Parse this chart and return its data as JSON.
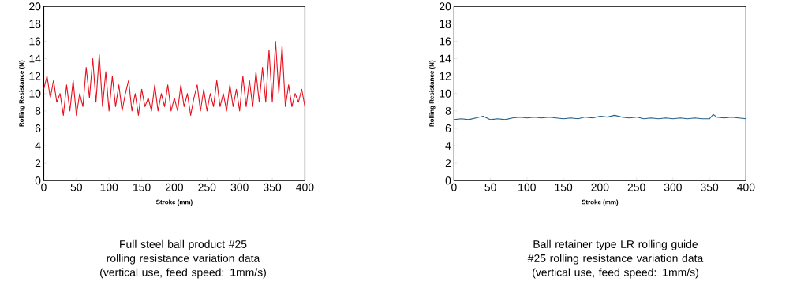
{
  "chart_data": [
    {
      "type": "line",
      "xlabel": "Stroke (mm)",
      "ylabel": "Rolling Resistance (N)",
      "annotations": [
        "Full steel ball product #25 rolling resistance variation data (vertical use, feed speed: 1mm/s)"
      ],
      "xlim": [
        0,
        400
      ],
      "ylim": [
        0,
        20
      ],
      "xticks": [
        0,
        50,
        100,
        150,
        200,
        250,
        300,
        350,
        400
      ],
      "yticks": [
        0,
        2,
        4,
        6,
        8,
        10,
        12,
        14,
        16,
        18,
        20
      ],
      "grid": false,
      "x": [
        0,
        5,
        10,
        15,
        20,
        25,
        30,
        35,
        40,
        45,
        50,
        55,
        60,
        65,
        70,
        75,
        80,
        85,
        90,
        95,
        100,
        105,
        110,
        115,
        120,
        125,
        130,
        135,
        140,
        145,
        150,
        155,
        160,
        165,
        170,
        175,
        180,
        185,
        190,
        195,
        200,
        205,
        210,
        215,
        220,
        225,
        230,
        235,
        240,
        245,
        250,
        255,
        260,
        265,
        270,
        275,
        280,
        285,
        290,
        295,
        300,
        305,
        310,
        315,
        320,
        325,
        330,
        335,
        340,
        345,
        350,
        355,
        360,
        365,
        370,
        375,
        380,
        385,
        390,
        395,
        400
      ],
      "series": [
        {
          "color": "#e8101e",
          "values": [
            10.5,
            12,
            9.5,
            11.5,
            9,
            10,
            7.5,
            11,
            8,
            11.5,
            7.5,
            10,
            8.5,
            13,
            9.5,
            14,
            9,
            14.5,
            8.5,
            12.5,
            8,
            12,
            8.5,
            11,
            8,
            10,
            11.5,
            8,
            10,
            7.5,
            10.5,
            8.5,
            9.5,
            8,
            11,
            8,
            10,
            8.5,
            11,
            8,
            9.5,
            8,
            11,
            8.5,
            10,
            7.5,
            9.5,
            11,
            8,
            10.5,
            8,
            10,
            8.5,
            11.5,
            8.5,
            10,
            8,
            11,
            8.5,
            10.5,
            8,
            12,
            8.5,
            11.5,
            8.5,
            12.5,
            9,
            13,
            9,
            15,
            9,
            16,
            10,
            15.5,
            8.5,
            11,
            8.5,
            10,
            9,
            10.5,
            8.5
          ]
        }
      ]
    },
    {
      "type": "line",
      "xlabel": "Stroke (mm)",
      "ylabel": "Rolling Resistance (N)",
      "annotations": [
        "Ball retainer type LR rolling guide #25 rolling resistance variation data (vertical use, feed speed: 1mm/s)"
      ],
      "xlim": [
        0,
        400
      ],
      "ylim": [
        0,
        20
      ],
      "xticks": [
        0,
        50,
        100,
        150,
        200,
        250,
        300,
        350,
        400
      ],
      "yticks": [
        0,
        2,
        4,
        6,
        8,
        10,
        12,
        14,
        16,
        18,
        20
      ],
      "grid": false,
      "x": [
        0,
        10,
        20,
        30,
        40,
        50,
        60,
        70,
        80,
        90,
        100,
        110,
        120,
        130,
        140,
        150,
        160,
        170,
        180,
        190,
        200,
        210,
        220,
        230,
        240,
        250,
        260,
        270,
        280,
        290,
        300,
        310,
        320,
        330,
        340,
        350,
        355,
        360,
        370,
        380,
        390,
        400
      ],
      "series": [
        {
          "color": "#1f5f8b",
          "values": [
            7,
            7.1,
            7,
            7.2,
            7.4,
            7,
            7.1,
            7,
            7.2,
            7.3,
            7.2,
            7.3,
            7.2,
            7.3,
            7.2,
            7.1,
            7.2,
            7.1,
            7.3,
            7.2,
            7.4,
            7.3,
            7.5,
            7.3,
            7.2,
            7.3,
            7.1,
            7.2,
            7.1,
            7.2,
            7.1,
            7.2,
            7.1,
            7.2,
            7.1,
            7.1,
            7.6,
            7.3,
            7.2,
            7.3,
            7.2,
            7.1
          ]
        }
      ]
    }
  ]
}
